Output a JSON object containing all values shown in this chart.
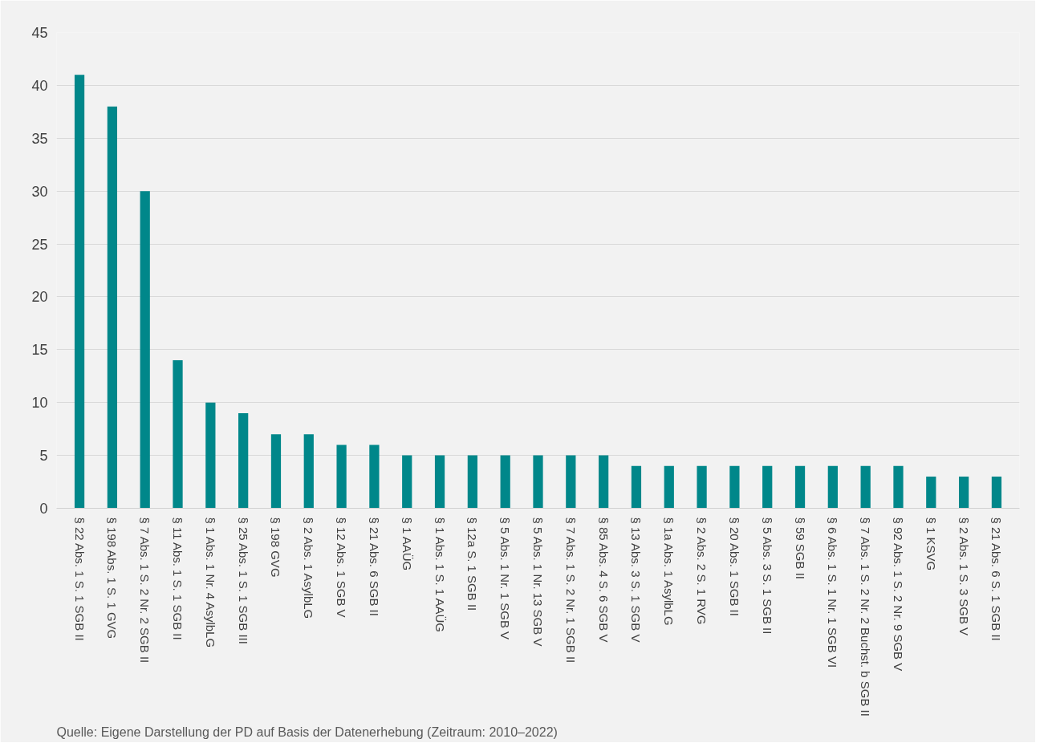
{
  "chart_data": {
    "type": "bar",
    "categories": [
      "§ 22 Abs. 1 S. 1 SGB II",
      "§ 198 Abs. 1 S. 1 GVG",
      "§ 7 Abs. 1 S. 2 Nr. 2 SGB II",
      "§ 11 Abs. 1 S. 1 SGB II",
      "§ 1 Abs. 1 Nr. 4 AsylbLG",
      "§ 25 Abs. 1 S. 1 SGB III",
      "§ 198 GVG",
      "§ 2 Abs. 1 AsylbLG",
      "§ 12 Abs. 1 SGB V",
      "§ 21 Abs. 6 SGB II",
      "§ 1 AAÜG",
      "§ 1 Abs. 1 S. 1 AAÜG",
      "§ 12a S. 1 SGB II",
      "§ 5 Abs. 1 Nr. 1 SGB V",
      "§ 5 Abs. 1 Nr. 13 SGB V",
      "§ 7 Abs. 1 S. 2 Nr. 1 SGB II",
      "§ 85 Abs. 4 S. 6 SGB V",
      "§ 13 Abs. 3 S. 1 SGB V",
      "§ 1a Abs. 1 AsylbLG",
      "§ 2 Abs. 2 S. 1 RVG",
      "§ 20 Abs. 1 SGB II",
      "§ 5 Abs. 3 S. 1 SGB II",
      "§ 59 SGB II",
      "§ 6 Abs. 1 S. 1 Nr. 1 SGB VI",
      "§ 7 Abs. 1 S. 2 Nr. 2 Buchst. b SGB II",
      "§ 92 Abs. 1 S. 2 Nr. 9 SGB V",
      "§ 1 KSVG",
      "§ 2 Abs. 1 S. 3 SGB V",
      "§ 21 Abs. 6 S. 1 SGB II"
    ],
    "values": [
      41,
      38,
      30,
      14,
      10,
      9,
      7,
      7,
      6,
      6,
      5,
      5,
      5,
      5,
      5,
      5,
      5,
      4,
      4,
      4,
      4,
      4,
      4,
      4,
      4,
      4,
      3,
      3,
      3
    ],
    "color": "#00878a",
    "ylim": [
      0,
      45
    ],
    "yticks": [
      0,
      5,
      10,
      15,
      20,
      25,
      30,
      35,
      40,
      45
    ],
    "grid": "y",
    "annotations": [
      "Quelle: Eigene Darstellung der PD auf Basis der Datenerhebung (Zeitraum: 2010–2022)"
    ]
  }
}
